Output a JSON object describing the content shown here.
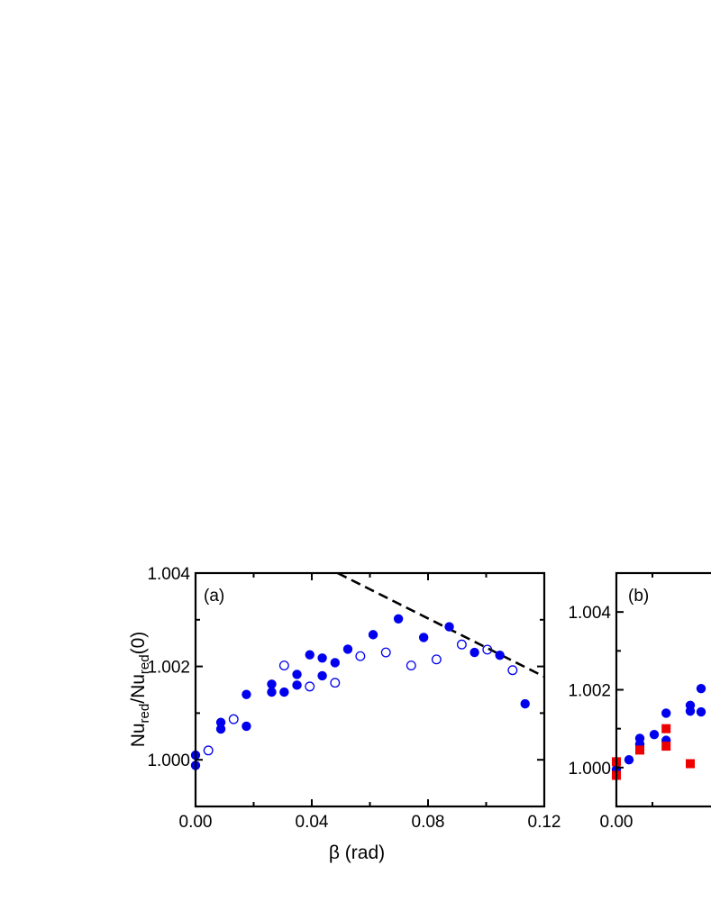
{
  "chart_data": [
    {
      "panel_label": "(a)",
      "type": "scatter",
      "xlabel": "β (rad)",
      "ylabel_main": "Nu",
      "ylabel_sub": "red",
      "ylabel_mid": "/Nu",
      "ylabel_sub2": "red",
      "ylabel_tail": "(0)",
      "xlim": [
        0.0,
        0.12
      ],
      "ylim": [
        0.999,
        1.004
      ],
      "x_ticks": [
        "0.00",
        "0.04",
        "0.08",
        "0.12"
      ],
      "x_tick_values": [
        0.0,
        0.04,
        0.08,
        0.12
      ],
      "y_ticks": [
        "1.000",
        "1.002",
        "1.004"
      ],
      "y_tick_values": [
        1.0,
        1.002,
        1.004
      ],
      "series": [
        {
          "marker": "filled-circle",
          "color": "#0000ee",
          "points": [
            [
              0.0,
              1.0001
            ],
            [
              0.0,
              0.99988
            ],
            [
              0.0087,
              1.00066
            ],
            [
              0.0087,
              1.0008
            ],
            [
              0.0175,
              1.00072
            ],
            [
              0.0175,
              1.0014
            ],
            [
              0.0262,
              1.00145
            ],
            [
              0.0262,
              1.00162
            ],
            [
              0.0305,
              1.00145
            ],
            [
              0.0349,
              1.0016
            ],
            [
              0.0349,
              1.00183
            ],
            [
              0.0393,
              1.00225
            ],
            [
              0.0436,
              1.0018
            ],
            [
              0.0436,
              1.00218
            ],
            [
              0.048,
              1.00208
            ],
            [
              0.0524,
              1.00237
            ],
            [
              0.0611,
              1.00268
            ],
            [
              0.0698,
              1.00302
            ],
            [
              0.0785,
              1.00262
            ],
            [
              0.0873,
              1.00285
            ],
            [
              0.096,
              1.0023
            ],
            [
              0.1047,
              1.00224
            ],
            [
              0.1134,
              1.0012
            ]
          ]
        },
        {
          "marker": "open-circle",
          "color": "#0000ee",
          "points": [
            [
              0.0044,
              1.0002
            ],
            [
              0.0131,
              1.00087
            ],
            [
              0.0305,
              1.00202
            ],
            [
              0.0393,
              1.00157
            ],
            [
              0.048,
              1.00165
            ],
            [
              0.0567,
              1.00222
            ],
            [
              0.0655,
              1.0023
            ],
            [
              0.0742,
              1.00202
            ],
            [
              0.0829,
              1.00215
            ],
            [
              0.0916,
              1.00247
            ],
            [
              0.1004,
              1.00236
            ],
            [
              0.1091,
              1.00192
            ]
          ]
        }
      ],
      "dashed_line": {
        "x": [
          0.0489,
          0.12
        ],
        "y": [
          1.004,
          1.00178
        ]
      }
    },
    {
      "panel_label": "(b)",
      "type": "scatter",
      "xlim": [
        0.0,
        0.03
      ],
      "ylim": [
        0.999,
        1.005
      ],
      "x_ticks": [
        "0.00"
      ],
      "x_tick_values": [
        0.0
      ],
      "y_ticks": [
        "1.000",
        "1.002",
        "1.004"
      ],
      "y_tick_values": [
        1.0,
        1.002,
        1.004
      ],
      "series": [
        {
          "marker": "filled-circle",
          "color": "#0000ee",
          "points": [
            [
              0.0,
              0.99995
            ],
            [
              0.0035,
              1.0002
            ],
            [
              0.0065,
              1.00075
            ],
            [
              0.0065,
              1.0006
            ],
            [
              0.0105,
              1.00085
            ],
            [
              0.0138,
              1.0014
            ],
            [
              0.0138,
              1.0007
            ],
            [
              0.0205,
              1.0016
            ],
            [
              0.0205,
              1.00145
            ],
            [
              0.0235,
              1.00143
            ],
            [
              0.0235,
              1.00203
            ]
          ]
        },
        {
          "marker": "filled-square",
          "color": "#ee0000",
          "points": [
            [
              0.0,
              1.00015
            ],
            [
              0.0,
              0.9998
            ],
            [
              0.0065,
              1.00045
            ],
            [
              0.0138,
              1.001
            ],
            [
              0.0138,
              1.00055
            ],
            [
              0.0205,
              1.0001
            ]
          ]
        }
      ]
    }
  ]
}
